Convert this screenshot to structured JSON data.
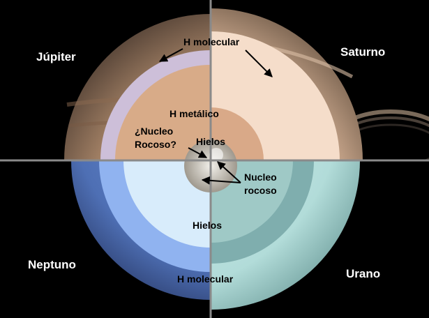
{
  "planets": {
    "jupiter": "Júpiter",
    "saturn": "Saturno",
    "neptune": "Neptuno",
    "uranus": "Urano"
  },
  "layers": {
    "h_molecular_top": "H molecular",
    "h_metallic": "H metálico",
    "rocky_core_q_line1": "¿Nucleo",
    "rocky_core_q_line2": "Rocoso?",
    "ices_top": "Hielos",
    "rocky_core_line1": "Nucleo",
    "rocky_core_line2": "rocoso",
    "ices_bottom": "Hielos",
    "h_molecular_bottom": "H molecular"
  },
  "colors": {
    "background": "#000000",
    "divider": "#8a8a8a",
    "jupiter_outer": "#b79778",
    "jupiter_molecular": "#cdbfd9",
    "jupiter_metallic": "#d8ab88",
    "saturn_outer": "#e5c6ab",
    "saturn_molecular": "#f5ddca",
    "saturn_metallic": "#d9a988",
    "neptune_outer": "#5b7fc4",
    "neptune_mantle": "#90b3f0",
    "neptune_ice": "#d8ecfb",
    "uranus_outer": "#bfe2df",
    "uranus_mantle": "#7faeae",
    "uranus_ice": "#9fc9c6",
    "core": "#c9c4b9"
  }
}
